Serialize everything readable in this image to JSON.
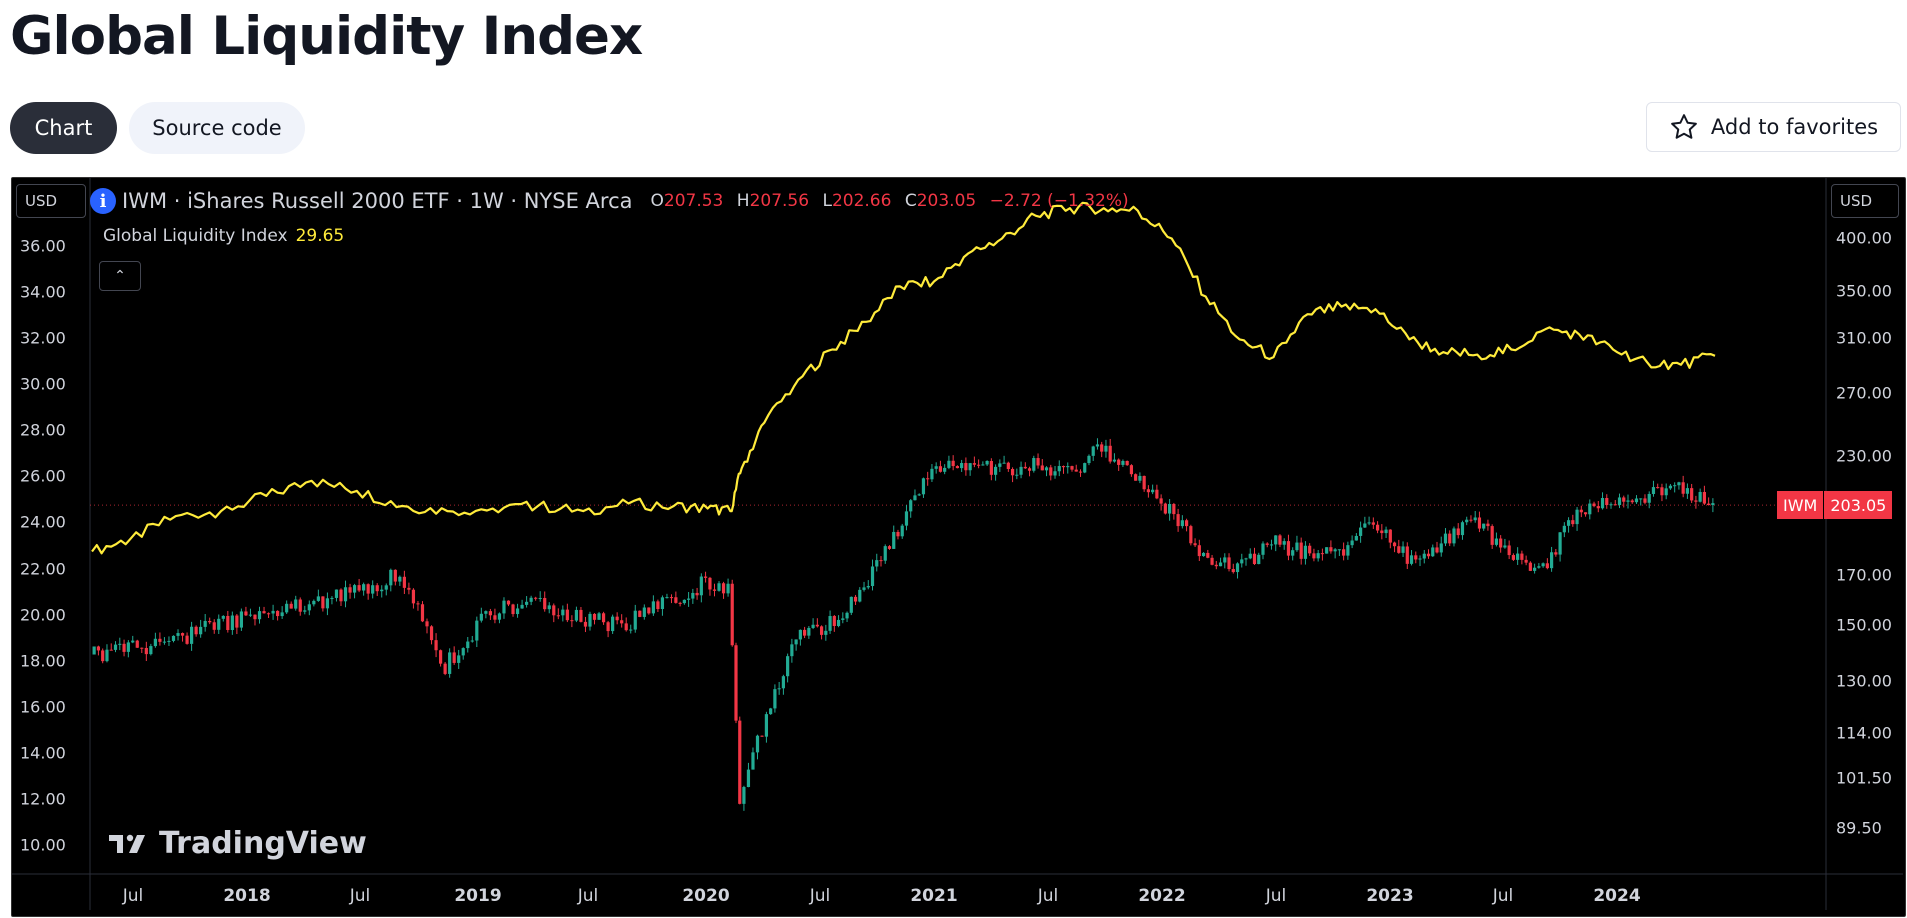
{
  "page": {
    "title": "Global Liquidity Index"
  },
  "tabs": [
    {
      "label": "Chart",
      "active": true
    },
    {
      "label": "Source code",
      "active": false
    }
  ],
  "favorites": {
    "label": "Add to favorites",
    "icon": "star-icon"
  },
  "chart_header": {
    "currency_left": "USD",
    "currency_right": "USD",
    "symbol": "IWM · iShares Russell 2000 ETF · 1W · NYSE Arca",
    "ohlc": {
      "o_label": "O",
      "o": "207.53",
      "h_label": "H",
      "h": "207.56",
      "l_label": "L",
      "l": "202.66",
      "c_label": "C",
      "c": "203.05",
      "change": "−2.72 (−1.32%)"
    },
    "indicator_name": "Global Liquidity Index",
    "indicator_value": "29.65",
    "collapse_icon": "chevron-up-icon"
  },
  "price_tag": {
    "symbol": "IWM",
    "value": "203.05"
  },
  "branding": {
    "name": "TradingView"
  },
  "colors": {
    "background": "#000000",
    "liquidity_line": "#ffeb3b",
    "up_candle": "#22ab94",
    "down_candle": "#f23645",
    "text": "#d1d4dc"
  },
  "chart_data": {
    "type": "line",
    "x_range": [
      "2017-05",
      "2024-12"
    ],
    "x_ticks": [
      "Jul",
      "2018",
      "Jul",
      "2019",
      "Jul",
      "2020",
      "Jul",
      "2021",
      "Jul",
      "2022",
      "Jul",
      "2023",
      "Jul",
      "2024"
    ],
    "left_axis": {
      "ticks": [
        "36.00",
        "34.00",
        "32.00",
        "30.00",
        "28.00",
        "26.00",
        "24.00",
        "22.00",
        "20.00",
        "18.00",
        "16.00",
        "14.00",
        "12.00",
        "10.00"
      ],
      "range": [
        9.2,
        36.3
      ]
    },
    "right_axis": {
      "ticks": [
        "400.00",
        "350.00",
        "310.00",
        "270.00",
        "230.00",
        "170.00",
        "150.00",
        "130.00",
        "114.00",
        "101.50",
        "89.50"
      ],
      "scale": "log",
      "range": [
        82,
        410
      ]
    },
    "series": [
      {
        "name": "Global Liquidity Index",
        "axis": "left",
        "style": "line",
        "x": [
          2017.38,
          2017.55,
          2017.75,
          2017.95,
          2018.15,
          2018.35,
          2018.55,
          2018.75,
          2018.95,
          2019.15,
          2019.35,
          2019.55,
          2019.75,
          2019.95,
          2020.1,
          2020.2,
          2020.25,
          2020.35,
          2020.5,
          2020.65,
          2020.8,
          2020.95,
          2021.1,
          2021.25,
          2021.4,
          2021.55,
          2021.7,
          2021.85,
          2022.0,
          2022.15,
          2022.3,
          2022.45,
          2022.6,
          2022.75,
          2022.9,
          2023.05,
          2023.2,
          2023.35,
          2023.5,
          2023.65,
          2023.8,
          2023.95,
          2024.1,
          2024.25,
          2024.4,
          2024.55
        ],
        "y": [
          21.9,
          22.4,
          23.3,
          23.5,
          24.1,
          24.7,
          24.3,
          23.7,
          23.5,
          23.6,
          23.7,
          23.5,
          23.8,
          23.7,
          23.6,
          23.5,
          25.2,
          27.0,
          28.7,
          29.9,
          31.0,
          32.4,
          32.6,
          33.7,
          34.3,
          35.2,
          35.5,
          35.5,
          35.4,
          34.3,
          32.0,
          30.3,
          29.6,
          31.3,
          31.6,
          31.5,
          30.3,
          29.8,
          29.7,
          29.9,
          30.7,
          30.5,
          29.9,
          29.4,
          29.3,
          29.65
        ]
      },
      {
        "name": "IWM",
        "axis": "right",
        "style": "candlestick",
        "x": [
          2017.38,
          2017.55,
          2017.75,
          2017.95,
          2018.15,
          2018.35,
          2018.55,
          2018.75,
          2018.95,
          2019.15,
          2019.35,
          2019.55,
          2019.75,
          2019.95,
          2020.1,
          2020.2,
          2020.25,
          2020.35,
          2020.5,
          2020.65,
          2020.8,
          2020.95,
          2021.1,
          2021.25,
          2021.4,
          2021.55,
          2021.7,
          2021.85,
          2022.0,
          2022.15,
          2022.3,
          2022.45,
          2022.6,
          2022.75,
          2022.9,
          2023.05,
          2023.2,
          2023.35,
          2023.5,
          2023.65,
          2023.8,
          2023.95,
          2024.1,
          2024.25,
          2024.4,
          2024.55
        ],
        "y": [
          139,
          141,
          144,
          150,
          155,
          157,
          163,
          170,
          135,
          155,
          158,
          152,
          150,
          160,
          167,
          165,
          95,
          115,
          145,
          150,
          165,
          190,
          222,
          225,
          222,
          225,
          220,
          235,
          218,
          200,
          180,
          172,
          185,
          180,
          178,
          195,
          177,
          185,
          195,
          180,
          173,
          198,
          205,
          208,
          212,
          203.05
        ]
      }
    ]
  }
}
